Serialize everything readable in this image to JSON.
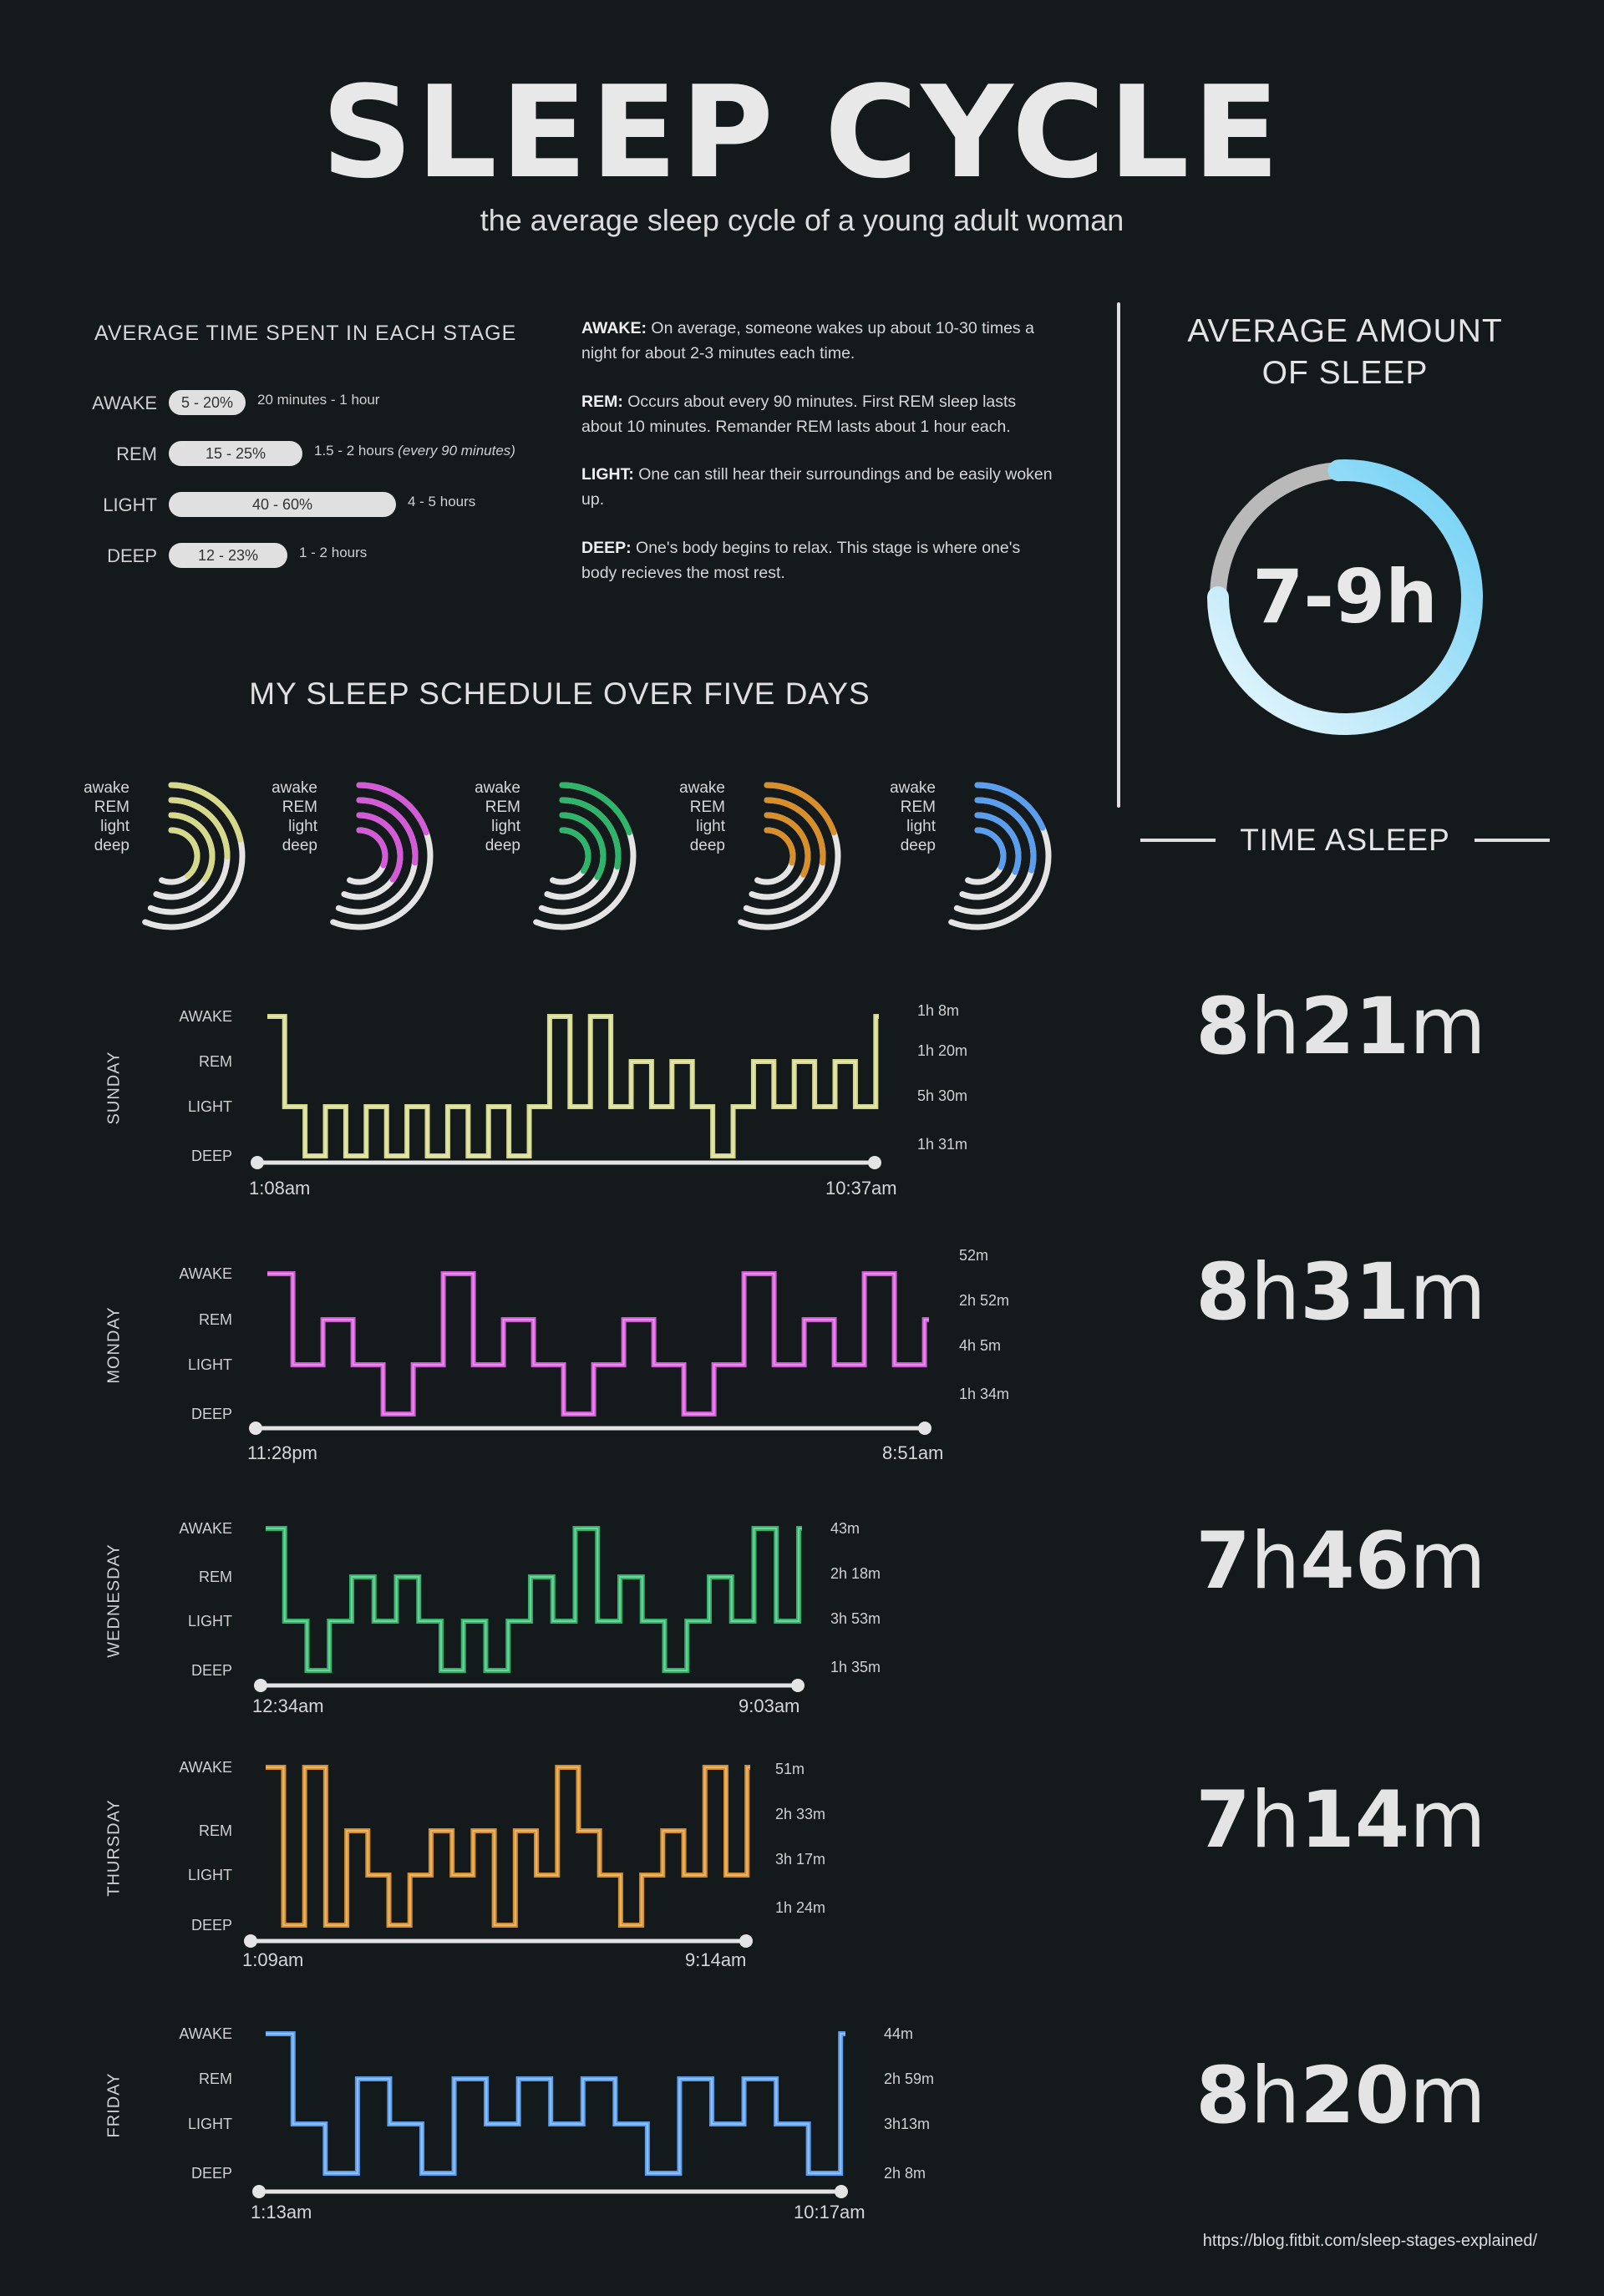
{
  "title": "SLEEP CYCLE",
  "subtitle": "the average sleep cycle of a young adult woman",
  "average_stage": {
    "heading": "AVERAGE TIME SPENT IN EACH STAGE",
    "rows": [
      {
        "label": "AWAKE",
        "range": "5 - 20%",
        "note": "20 minutes - 1 hour",
        "note_italic": ""
      },
      {
        "label": "REM",
        "range": "15 - 25%",
        "note": "1.5 - 2 hours",
        "note_italic": "(every 90 minutes)"
      },
      {
        "label": "LIGHT",
        "range": "40 - 60%",
        "note": "4 - 5 hours",
        "note_italic": ""
      },
      {
        "label": "DEEP",
        "range": "12 - 23%",
        "note": "1 - 2 hours",
        "note_italic": ""
      }
    ]
  },
  "descriptions": [
    {
      "term": "AWAKE:",
      "text": "On average, someone wakes up about 10-30 times a night for about 2-3 minutes each time."
    },
    {
      "term": "REM:",
      "text": "Occurs about every 90 minutes. First REM sleep lasts about 10 minutes. Remander REM lasts about 1 hour each."
    },
    {
      "term": "LIGHT:",
      "text": "One can still hear their surroundings and be easily woken up."
    },
    {
      "term": "DEEP:",
      "text": "One's body begins to relax. This stage is where one's body recieves the most rest."
    }
  ],
  "average_amount": {
    "heading_line1": "AVERAGE AMOUNT",
    "heading_line2": "OF SLEEP",
    "value": "7-9h",
    "colors": {
      "track": "#b9b9b9",
      "gradient_start": "#e9f7fd",
      "gradient_end": "#6fd0f5"
    }
  },
  "time_asleep_heading": "TIME ASLEEP",
  "schedule_heading": "MY SLEEP SCHEDULE OVER FIVE DAYS",
  "arc_legend": [
    "awake",
    "REM",
    "light",
    "deep"
  ],
  "y_levels": [
    "AWAKE",
    "REM",
    "LIGHT",
    "DEEP"
  ],
  "days": [
    {
      "name": "SUNDAY",
      "color": "#d6d98a",
      "start": "1:08am",
      "end": "10:37am",
      "total_num1": "8",
      "total_unit1": "h",
      "total_num2": "21",
      "total_unit2": "m",
      "durations": [
        "1h 8m",
        "1h 20m",
        "5h 30m",
        "1h 31m"
      ]
    },
    {
      "name": "MONDAY",
      "color": "#d45ad8",
      "start": "11:28pm",
      "end": "8:51am",
      "total_num1": "8",
      "total_unit1": "h",
      "total_num2": "31",
      "total_unit2": "m",
      "durations": [
        "52m",
        "2h 52m",
        "4h 5m",
        "1h 34m"
      ]
    },
    {
      "name": "WEDNESDAY",
      "color": "#2fb56a",
      "start": "12:34am",
      "end": "9:03am",
      "total_num1": "7",
      "total_unit1": "h",
      "total_num2": "46",
      "total_unit2": "m",
      "durations": [
        "43m",
        "2h 18m",
        "3h 53m",
        "1h 35m"
      ]
    },
    {
      "name": "THURSDAY",
      "color": "#d88f2a",
      "start": "1:09am",
      "end": "9:14am",
      "total_num1": "7",
      "total_unit1": "h",
      "total_num2": "14",
      "total_unit2": "m",
      "durations": [
        "51m",
        "2h 33m",
        "3h 17m",
        "1h 24m"
      ]
    },
    {
      "name": "FRIDAY",
      "color": "#5a9ef0",
      "start": "1:13am",
      "end": "10:17am",
      "total_num1": "8",
      "total_unit1": "h",
      "total_num2": "20",
      "total_unit2": "m",
      "durations": [
        "44m",
        "2h 59m",
        "3h13m",
        "2h 8m"
      ]
    }
  ],
  "chart_data": [
    {
      "type": "line",
      "title": "SUNDAY",
      "y_categories": [
        "AWAKE",
        "REM",
        "LIGHT",
        "DEEP"
      ],
      "steps": [
        "AWAKE",
        "LIGHT",
        "DEEP",
        "LIGHT",
        "DEEP",
        "LIGHT",
        "DEEP",
        "LIGHT",
        "DEEP",
        "LIGHT",
        "DEEP",
        "LIGHT",
        "DEEP",
        "LIGHT",
        "AWAKE",
        "LIGHT",
        "AWAKE",
        "LIGHT",
        "REM",
        "LIGHT",
        "REM",
        "LIGHT",
        "DEEP",
        "LIGHT",
        "REM",
        "LIGHT",
        "REM",
        "LIGHT",
        "REM",
        "LIGHT",
        "AWAKE"
      ]
    },
    {
      "type": "line",
      "title": "MONDAY",
      "y_categories": [
        "AWAKE",
        "REM",
        "LIGHT",
        "DEEP"
      ],
      "steps": [
        "AWAKE",
        "LIGHT",
        "REM",
        "LIGHT",
        "DEEP",
        "LIGHT",
        "AWAKE",
        "LIGHT",
        "REM",
        "LIGHT",
        "DEEP",
        "LIGHT",
        "REM",
        "LIGHT",
        "DEEP",
        "LIGHT",
        "AWAKE",
        "LIGHT",
        "REM",
        "LIGHT",
        "AWAKE",
        "LIGHT",
        "REM"
      ]
    },
    {
      "type": "line",
      "title": "WEDNESDAY",
      "y_categories": [
        "AWAKE",
        "REM",
        "LIGHT",
        "DEEP"
      ],
      "steps": [
        "AWAKE",
        "LIGHT",
        "DEEP",
        "LIGHT",
        "REM",
        "LIGHT",
        "REM",
        "LIGHT",
        "DEEP",
        "LIGHT",
        "DEEP",
        "LIGHT",
        "REM",
        "LIGHT",
        "AWAKE",
        "LIGHT",
        "REM",
        "LIGHT",
        "DEEP",
        "LIGHT",
        "REM",
        "LIGHT",
        "AWAKE",
        "LIGHT",
        "AWAKE"
      ]
    },
    {
      "type": "line",
      "title": "THURSDAY",
      "y_categories": [
        "AWAKE",
        "REM",
        "LIGHT",
        "DEEP"
      ],
      "steps": [
        "AWAKE",
        "DEEP",
        "AWAKE",
        "DEEP",
        "REM",
        "LIGHT",
        "DEEP",
        "LIGHT",
        "REM",
        "LIGHT",
        "REM",
        "DEEP",
        "REM",
        "LIGHT",
        "AWAKE",
        "REM",
        "LIGHT",
        "DEEP",
        "LIGHT",
        "REM",
        "LIGHT",
        "AWAKE",
        "LIGHT",
        "AWAKE"
      ]
    },
    {
      "type": "line",
      "title": "FRIDAY",
      "y_categories": [
        "AWAKE",
        "REM",
        "LIGHT",
        "DEEP"
      ],
      "steps": [
        "AWAKE",
        "LIGHT",
        "DEEP",
        "REM",
        "LIGHT",
        "DEEP",
        "REM",
        "LIGHT",
        "REM",
        "LIGHT",
        "REM",
        "LIGHT",
        "DEEP",
        "REM",
        "LIGHT",
        "REM",
        "LIGHT",
        "DEEP",
        "AWAKE"
      ]
    }
  ],
  "source": "https://blog.fitbit.com/sleep-stages-explained/"
}
